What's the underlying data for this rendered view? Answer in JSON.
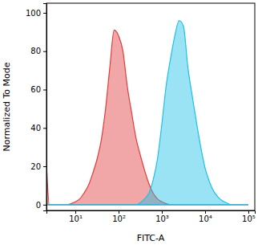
{
  "chart_data": {
    "type": "area",
    "x_label": "FITC-A",
    "y_label": "Normalized To Mode",
    "log": "x",
    "grid": false,
    "xlim": [
      2.15,
      141000
    ],
    "ylim": [
      -3,
      105
    ],
    "xticks": [
      {
        "value": 10,
        "label": "10¹"
      },
      {
        "value": 100,
        "label": "10²"
      },
      {
        "value": 1000,
        "label": "10³"
      },
      {
        "value": 10000,
        "label": "10⁴"
      },
      {
        "value": 100000,
        "label": "10⁵"
      }
    ],
    "yticks": [
      0,
      20,
      40,
      60,
      80,
      100
    ],
    "x": [
      2.2,
      2.5,
      3.2,
      4,
      5,
      6.3,
      7.9,
      10,
      12.6,
      15.8,
      20,
      25,
      32,
      40,
      50,
      63,
      79,
      100,
      126,
      158,
      200,
      251,
      316,
      398,
      501,
      631,
      794,
      1000,
      1259,
      1585,
      1995,
      2512,
      3162,
      3981,
      5012,
      6310,
      7943,
      10000,
      12589,
      15849,
      19953,
      25119,
      31623,
      39811,
      50119,
      63096,
      79433,
      100000
    ],
    "series": [
      {
        "color": "#e03c3c",
        "values": [
          17,
          0,
          0,
          0,
          0,
          0,
          0.5,
          1.5,
          3,
          6,
          10,
          16,
          24,
          34,
          50,
          72,
          91,
          88,
          80,
          62,
          48,
          35,
          26,
          18,
          11,
          6,
          3,
          1.5,
          0.5,
          0,
          0,
          0,
          0,
          0,
          0,
          0,
          0,
          0,
          0,
          0,
          0,
          0,
          0,
          0,
          0,
          0,
          0,
          0
        ]
      },
      {
        "color": "#1ec0e6",
        "values": [
          0,
          0,
          0,
          0,
          0,
          0,
          0,
          0,
          0,
          0,
          0,
          0,
          0,
          0,
          0,
          0,
          0,
          0,
          0,
          0,
          0,
          0,
          1,
          3,
          6,
          13,
          24,
          42,
          62,
          76,
          88,
          96,
          93,
          72,
          57,
          43,
          30,
          19,
          12,
          7,
          4,
          2,
          1,
          0,
          0,
          0,
          0,
          0
        ]
      }
    ]
  }
}
